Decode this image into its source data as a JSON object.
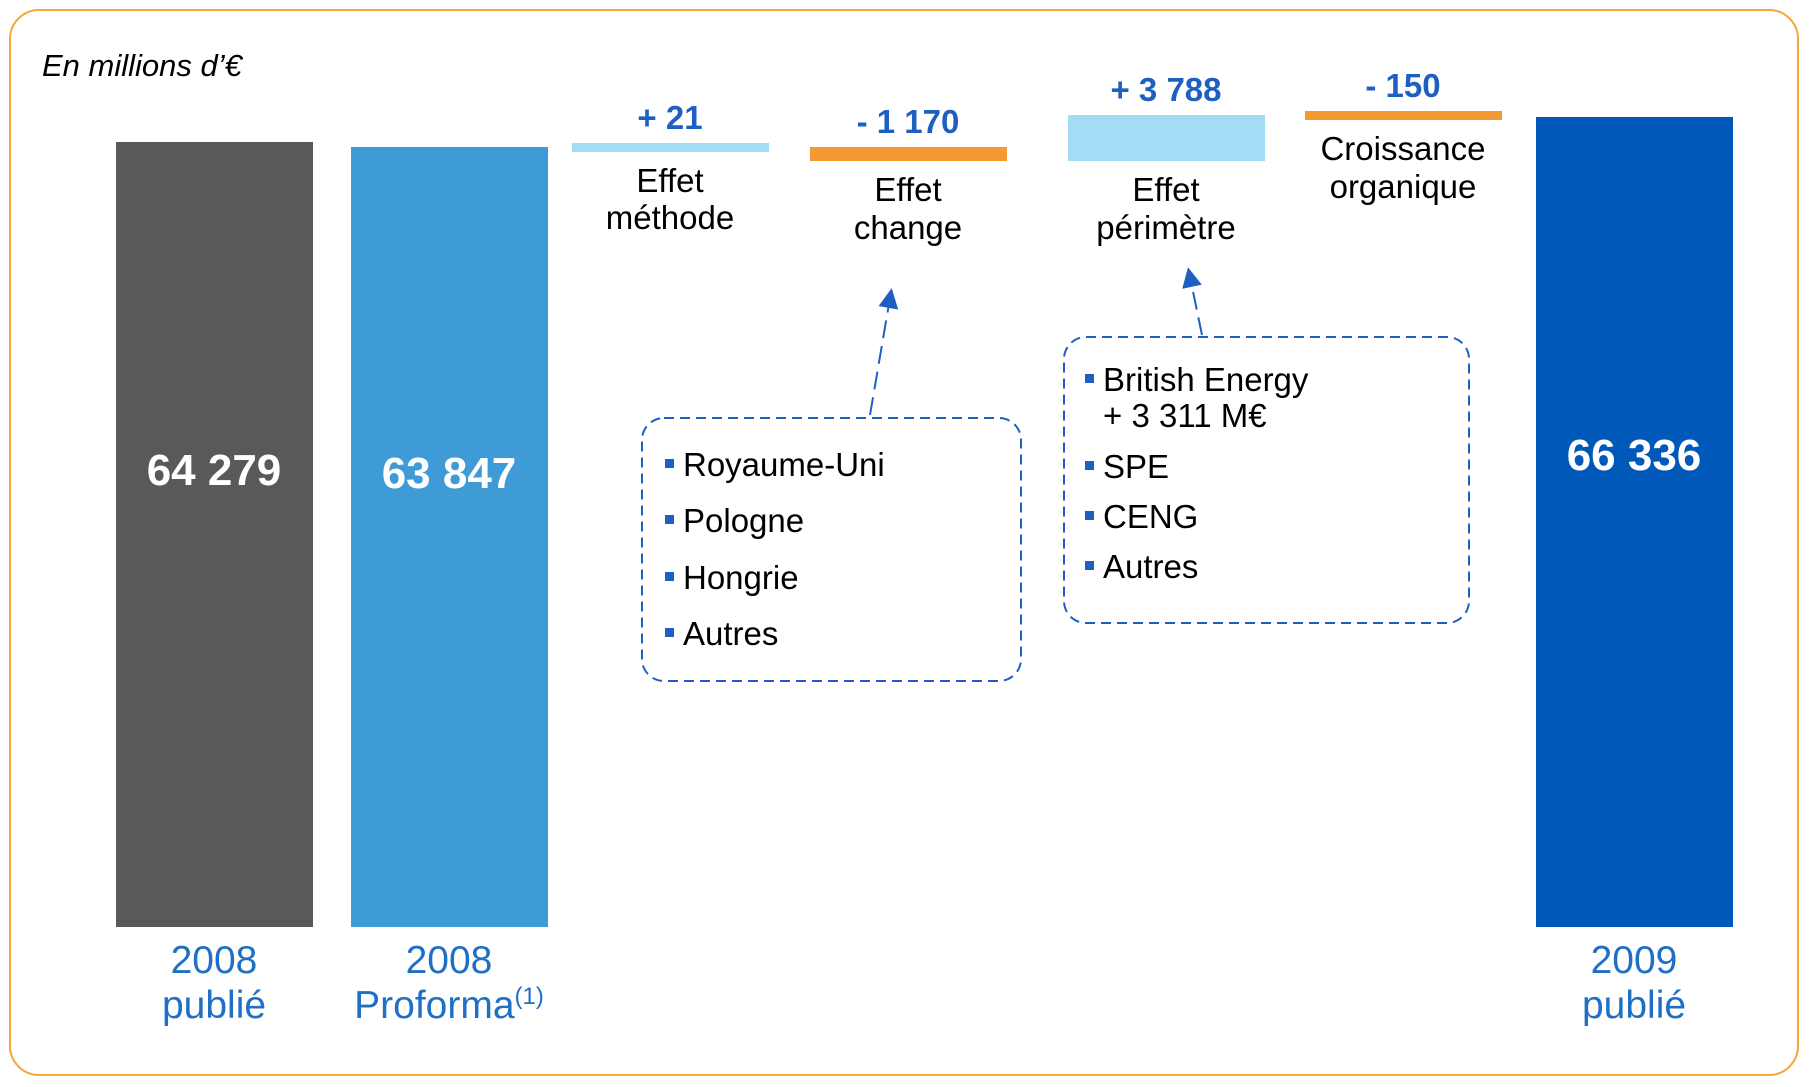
{
  "chart_data": {
    "type": "waterfall",
    "subtitle": "En millions d’€",
    "categories": [
      "2008\npublié",
      "2008\nProforma",
      "Effet\nméthode",
      "Effet\nchange",
      "Effet\npérimètre",
      "Croissance\norganique",
      "2009\npublié"
    ],
    "category_notes": [
      null,
      "(1)",
      null,
      null,
      null,
      null,
      null
    ],
    "measure": [
      "absolute",
      "absolute",
      "relative",
      "relative",
      "relative",
      "relative",
      "absolute"
    ],
    "values": [
      64279,
      63847,
      21,
      -1170,
      3788,
      -150,
      66336
    ],
    "value_labels": [
      "64 279",
      "63 847",
      "+ 21",
      "- 1 170",
      "+ 3 788",
      "- 150",
      "66 336"
    ],
    "colors": [
      "#595959",
      "#3e9bd6",
      "#a3dcf5",
      "#f39a32",
      "#a3dcf5",
      "#f39a32",
      "#0059b8"
    ],
    "ylim": [
      0,
      70000
    ],
    "annotations": [
      {
        "items": [
          "Royaume-Uni",
          "Pologne",
          "Hongrie",
          "Autres"
        ]
      },
      {
        "items": [
          "British Energy\n+ 3 311 M€",
          "SPE",
          "CENG",
          "Autres"
        ]
      }
    ]
  }
}
